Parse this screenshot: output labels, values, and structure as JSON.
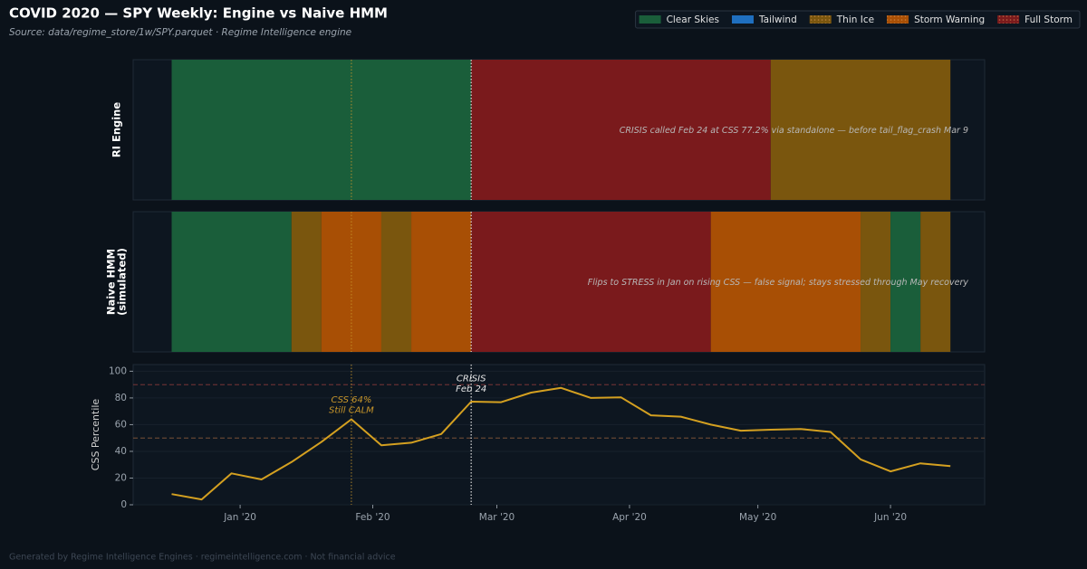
{
  "chart_data": {
    "title": "COVID 2020 — SPY Weekly: Engine vs Naive HMM",
    "subtitle": "Source: data/regime_store/1w/SPY.parquet · Regime Intelligence engine",
    "footer": "Generated by Regime Intelligence Engines · regimeintelligence.com · Not financial advice",
    "legend": {
      "position": "upper right",
      "items": [
        {
          "name": "Clear Skies",
          "color": "#1a5e3a",
          "hatched": false
        },
        {
          "name": "Tailwind",
          "color": "#1f6fbf",
          "hatched": false
        },
        {
          "name": "Thin Ice",
          "color": "#7a560e",
          "hatched": true
        },
        {
          "name": "Storm Warning",
          "color": "#a84f05",
          "hatched": true
        },
        {
          "name": "Full Storm",
          "color": "#7a1a1c",
          "hatched": true
        }
      ]
    },
    "xlim": [
      "2019-12-07",
      "2020-06-23"
    ],
    "xticks": [
      {
        "value": "2020-01-01",
        "label": "Jan '20"
      },
      {
        "value": "2020-02-01",
        "label": "Feb '20"
      },
      {
        "value": "2020-03-01",
        "label": "Mar '20"
      },
      {
        "value": "2020-04-01",
        "label": "Apr '20"
      },
      {
        "value": "2020-05-01",
        "label": "May '20"
      },
      {
        "value": "2020-06-01",
        "label": "Jun '20"
      }
    ],
    "markers": [
      {
        "x": "2020-01-27",
        "color": "#c8962a",
        "label": [
          "CSS 64%",
          "Still CALM"
        ]
      },
      {
        "x": "2020-02-24",
        "color": "#e8e8e8",
        "label": [
          "CRISIS",
          "Feb 24"
        ]
      }
    ],
    "panels": [
      {
        "type": "timeline",
        "ylabel": [
          "RI Engine"
        ],
        "annotation": "CRISIS called Feb 24 at CSS 77.2% via standalone — before tail_flag_crash Mar 9",
        "periods": [
          {
            "regime": "Clear Skies",
            "start": "2019-12-16",
            "end": "2020-02-24"
          },
          {
            "regime": "Full Storm",
            "start": "2020-02-24",
            "end": "2020-05-04"
          },
          {
            "regime": "Thin Ice",
            "start": "2020-05-04",
            "end": "2020-06-15"
          }
        ]
      },
      {
        "type": "timeline",
        "ylabel": [
          "Naive HMM",
          "(simulated)"
        ],
        "annotation": "Flips to STRESS in Jan on rising CSS — false signal; stays stressed through May recovery",
        "periods": [
          {
            "regime": "Clear Skies",
            "start": "2019-12-16",
            "end": "2020-01-13"
          },
          {
            "regime": "Thin Ice",
            "start": "2020-01-13",
            "end": "2020-01-20"
          },
          {
            "regime": "Storm Warning",
            "start": "2020-01-20",
            "end": "2020-02-03"
          },
          {
            "regime": "Thin Ice",
            "start": "2020-02-03",
            "end": "2020-02-10"
          },
          {
            "regime": "Storm Warning",
            "start": "2020-02-10",
            "end": "2020-02-24"
          },
          {
            "regime": "Full Storm",
            "start": "2020-02-24",
            "end": "2020-04-20"
          },
          {
            "regime": "Storm Warning",
            "start": "2020-04-20",
            "end": "2020-05-25"
          },
          {
            "regime": "Thin Ice",
            "start": "2020-05-25",
            "end": "2020-06-01"
          },
          {
            "regime": "Clear Skies",
            "start": "2020-06-01",
            "end": "2020-06-08"
          },
          {
            "regime": "Thin Ice",
            "start": "2020-06-08",
            "end": "2020-06-15"
          }
        ]
      },
      {
        "type": "line",
        "ylabel": [
          "CSS Percentile"
        ],
        "color": "#d4a020",
        "ylim": [
          0,
          105
        ],
        "yticks": [
          0,
          20,
          40,
          60,
          80,
          100
        ],
        "grid": true,
        "hlines": [
          {
            "y": 50,
            "color": "#8a5a3a"
          },
          {
            "y": 90,
            "color": "#8a3a3a"
          }
        ],
        "x": [
          "2019-12-16",
          "2019-12-23",
          "2019-12-30",
          "2020-01-06",
          "2020-01-13",
          "2020-01-20",
          "2020-01-27",
          "2020-02-03",
          "2020-02-10",
          "2020-02-17",
          "2020-02-24",
          "2020-03-02",
          "2020-03-09",
          "2020-03-16",
          "2020-03-23",
          "2020-03-30",
          "2020-04-06",
          "2020-04-13",
          "2020-04-20",
          "2020-04-27",
          "2020-05-04",
          "2020-05-11",
          "2020-05-18",
          "2020-05-25",
          "2020-06-01",
          "2020-06-08",
          "2020-06-15"
        ],
        "values": [
          8,
          4,
          23.5,
          19,
          32,
          47,
          64,
          44.5,
          46.5,
          53,
          77.2,
          76.8,
          84,
          87.5,
          80,
          80.5,
          67,
          66,
          60,
          55.5,
          56.2,
          56.8,
          54.5,
          34,
          25,
          31,
          29
        ]
      }
    ]
  }
}
